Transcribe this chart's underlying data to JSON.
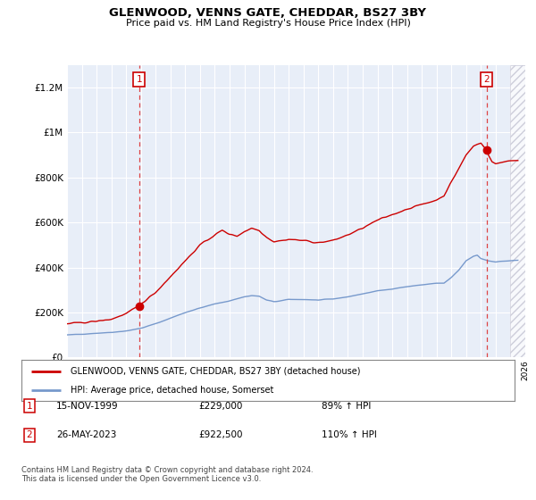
{
  "title": "GLENWOOD, VENNS GATE, CHEDDAR, BS27 3BY",
  "subtitle": "Price paid vs. HM Land Registry's House Price Index (HPI)",
  "legend_label_red": "GLENWOOD, VENNS GATE, CHEDDAR, BS27 3BY (detached house)",
  "legend_label_blue": "HPI: Average price, detached house, Somerset",
  "annotation1_label": "1",
  "annotation1_date": "15-NOV-1999",
  "annotation1_price": "£229,000",
  "annotation1_hpi": "89% ↑ HPI",
  "annotation2_label": "2",
  "annotation2_date": "26-MAY-2023",
  "annotation2_price": "£922,500",
  "annotation2_hpi": "110% ↑ HPI",
  "footer": "Contains HM Land Registry data © Crown copyright and database right 2024.\nThis data is licensed under the Open Government Licence v3.0.",
  "ylim": [
    0,
    1300000
  ],
  "yticks": [
    0,
    200000,
    400000,
    600000,
    800000,
    1000000,
    1200000
  ],
  "ytick_labels": [
    "£0",
    "£200K",
    "£400K",
    "£600K",
    "£800K",
    "£1M",
    "£1.2M"
  ],
  "xmin": 1995.0,
  "xmax": 2026.0,
  "background_color": "#ffffff",
  "plot_bg_color": "#e8eef8",
  "grid_color": "#ffffff",
  "red_color": "#cc0000",
  "blue_color": "#7799cc",
  "sale1_x": 1999.875,
  "sale1_y": 229000,
  "sale2_x": 2023.375,
  "sale2_y": 922500
}
